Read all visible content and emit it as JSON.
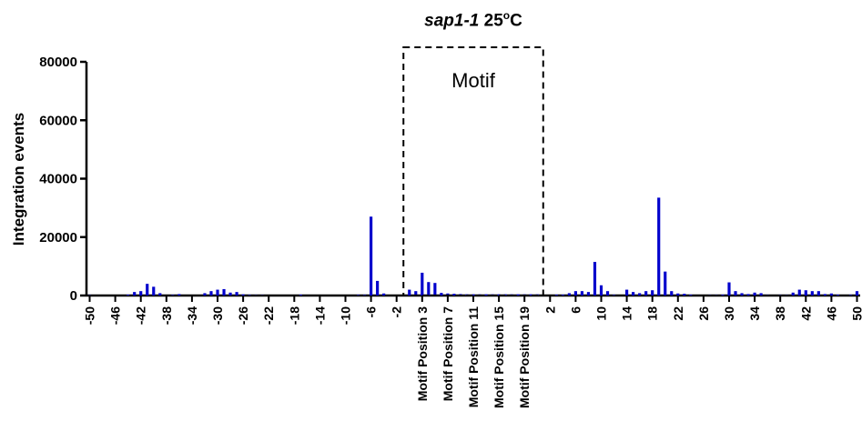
{
  "chart_data": {
    "type": "bar",
    "title": {
      "italic": "sap1-1",
      "plain": "25",
      "superscript": "o",
      "suffix": "C"
    },
    "ylabel": "Integration events",
    "xlabel": "",
    "ylim": [
      0,
      80000
    ],
    "y_ticks": [
      "0",
      "20000",
      "40000",
      "60000",
      "80000"
    ],
    "grid": false,
    "legend": "none",
    "bar_color": "#0000CC",
    "annotation": "Motif",
    "x_tick_labels": [
      "-50",
      "-46",
      "-42",
      "-38",
      "-34",
      "-30",
      "-26",
      "-22",
      "-18",
      "-14",
      "-10",
      "-6",
      "-2",
      "Motif Position 3",
      "Motif Position 7",
      "Motif Position 11",
      "Motif Position 15",
      "Motif Position 19",
      "2",
      "6",
      "10",
      "14",
      "18",
      "22",
      "26",
      "30",
      "34",
      "38",
      "42",
      "46",
      "50"
    ],
    "categories": [
      "-50",
      "-49",
      "-48",
      "-47",
      "-46",
      "-45",
      "-44",
      "-43",
      "-42",
      "-41",
      "-40",
      "-39",
      "-38",
      "-37",
      "-36",
      "-35",
      "-34",
      "-33",
      "-32",
      "-31",
      "-30",
      "-29",
      "-28",
      "-27",
      "-26",
      "-25",
      "-24",
      "-23",
      "-22",
      "-21",
      "-20",
      "-19",
      "-18",
      "-17",
      "-16",
      "-15",
      "-14",
      "-13",
      "-12",
      "-11",
      "-10",
      "-9",
      "-8",
      "-7",
      "-6",
      "-5",
      "-4",
      "-3",
      "-2",
      "-1",
      "Motif Position 1",
      "Motif Position 2",
      "Motif Position 3",
      "Motif Position 4",
      "Motif Position 5",
      "Motif Position 6",
      "Motif Position 7",
      "Motif Position 8",
      "Motif Position 9",
      "Motif Position 10",
      "Motif Position 11",
      "Motif Position 12",
      "Motif Position 13",
      "Motif Position 14",
      "Motif Position 15",
      "Motif Position 16",
      "Motif Position 17",
      "Motif Position 18",
      "Motif Position 19",
      "Motif Position 20",
      "Motif Position 21",
      "1",
      "2",
      "3",
      "4",
      "5",
      "6",
      "7",
      "8",
      "9",
      "10",
      "11",
      "12",
      "13",
      "14",
      "15",
      "16",
      "17",
      "18",
      "19",
      "20",
      "21",
      "22",
      "23",
      "24",
      "25",
      "26",
      "27",
      "28",
      "29",
      "30",
      "31",
      "32",
      "33",
      "34",
      "35",
      "36",
      "37",
      "38",
      "39",
      "40",
      "41",
      "42",
      "43",
      "44",
      "45",
      "46",
      "47",
      "48",
      "49",
      "50"
    ],
    "values": [
      100,
      0,
      0,
      0,
      0,
      0,
      300,
      1200,
      1500,
      4000,
      3000,
      800,
      0,
      200,
      500,
      0,
      0,
      0,
      800,
      1500,
      2000,
      2200,
      1000,
      1200,
      400,
      200,
      100,
      100,
      0,
      0,
      0,
      0,
      0,
      300,
      0,
      0,
      0,
      0,
      0,
      0,
      0,
      0,
      200,
      200,
      27000,
      5000,
      700,
      0,
      0,
      0,
      2000,
      1500,
      7800,
      4600,
      4300,
      900,
      700,
      600,
      500,
      400,
      400,
      400,
      400,
      400,
      400,
      400,
      400,
      400,
      400,
      400,
      400,
      0,
      0,
      300,
      300,
      800,
      1500,
      1500,
      1200,
      11500,
      3500,
      1500,
      200,
      0,
      2000,
      1200,
      800,
      1500,
      1800,
      33500,
      8200,
      1500,
      700,
      600,
      300,
      0,
      0,
      100,
      100,
      300,
      4500,
      1500,
      800,
      500,
      1000,
      800,
      100,
      0,
      100,
      100,
      1000,
      2000,
      1800,
      1500,
      1500,
      500,
      700,
      300,
      0,
      200,
      1500
    ]
  }
}
